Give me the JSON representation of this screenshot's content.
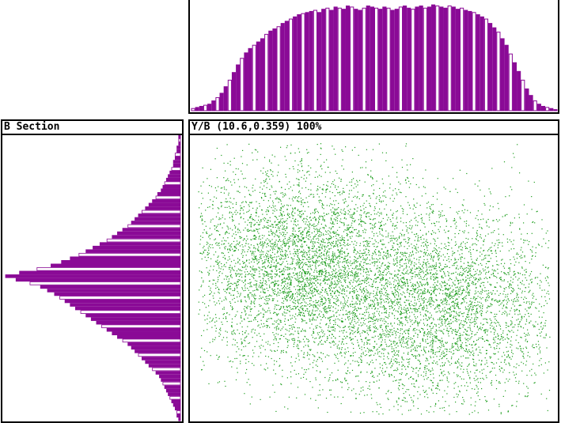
{
  "colors": {
    "histogram": "#8a0a96",
    "scatter": "#1f9e1f",
    "frame": "#000000",
    "background": "#ffffff"
  },
  "left_panel": {
    "title": "B Section"
  },
  "main_panel": {
    "status": "Y/B (10.6,0.359) 100%"
  },
  "chart_data": [
    {
      "type": "bar",
      "orientation": "vertical",
      "description_role": "top marginal histogram of Y",
      "bins": 90,
      "values": [
        2,
        3,
        4,
        5,
        6,
        9,
        12,
        16,
        22,
        28,
        35,
        42,
        48,
        53,
        57,
        60,
        63,
        66,
        70,
        73,
        75,
        77,
        80,
        82,
        84,
        86,
        88,
        89,
        90,
        91,
        92,
        90,
        93,
        94,
        92,
        95,
        94,
        93,
        96,
        95,
        93,
        92,
        94,
        96,
        95,
        94,
        93,
        95,
        94,
        92,
        93,
        95,
        96,
        94,
        93,
        95,
        96,
        94,
        95,
        97,
        96,
        95,
        94,
        96,
        95,
        93,
        94,
        92,
        91,
        90,
        88,
        86,
        84,
        80,
        76,
        72,
        66,
        60,
        52,
        44,
        36,
        28,
        20,
        14,
        9,
        6,
        4,
        3,
        2,
        1
      ],
      "ylim": [
        0,
        100
      ]
    },
    {
      "type": "bar",
      "orientation": "horizontal",
      "description_role": "left marginal histogram of B",
      "bins": 80,
      "values": [
        1,
        1,
        1,
        2,
        2,
        3,
        3,
        4,
        4,
        5,
        6,
        7,
        8,
        9,
        10,
        11,
        13,
        14,
        16,
        18,
        20,
        22,
        24,
        26,
        28,
        30,
        33,
        36,
        39,
        42,
        46,
        50,
        54,
        58,
        63,
        68,
        74,
        82,
        92,
        100,
        94,
        86,
        80,
        76,
        72,
        69,
        66,
        63,
        60,
        57,
        54,
        51,
        48,
        45,
        42,
        39,
        36,
        33,
        30,
        28,
        26,
        24,
        22,
        20,
        18,
        16,
        14,
        12,
        11,
        10,
        9,
        8,
        7,
        6,
        5,
        4,
        3,
        2,
        2,
        1
      ],
      "xlim": [
        0,
        100
      ]
    },
    {
      "type": "scatter",
      "description_role": "Y vs B scatter plot",
      "point_count": 9000,
      "distribution": "two overlapping clusters: upper-left lobe and lower-right lobe",
      "clusters": [
        {
          "center_x": 0.28,
          "center_y": 0.55,
          "spread_x": 0.16,
          "spread_y": 0.18,
          "weight": 0.5
        },
        {
          "center_x": 0.68,
          "center_y": 0.4,
          "spread_x": 0.18,
          "spread_y": 0.18,
          "weight": 0.5
        }
      ],
      "xlim": [
        0,
        1
      ],
      "ylim": [
        0,
        1
      ]
    }
  ]
}
